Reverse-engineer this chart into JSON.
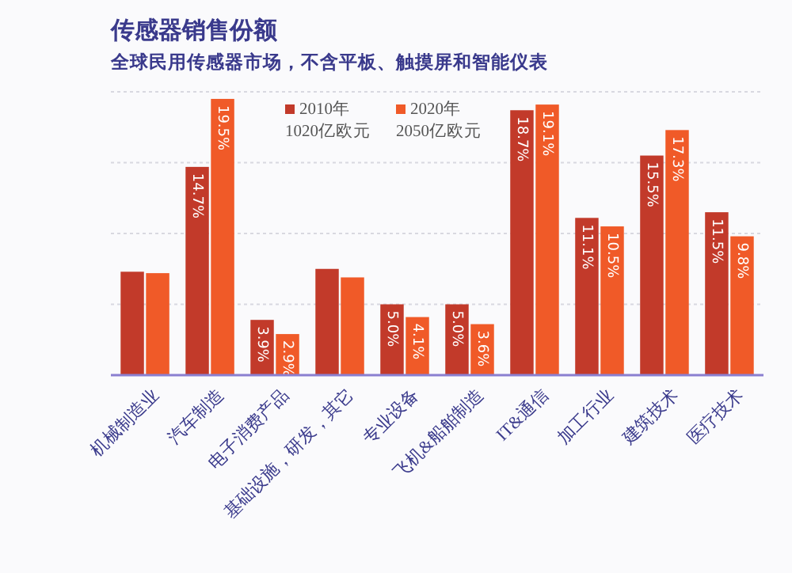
{
  "chart_data": {
    "type": "bar",
    "title": "传感器销售份额",
    "subtitle": "全球民用传感器市场，不含平板、触摸屏和智能仪表",
    "categories": [
      "机械制造业",
      "汽车制造",
      "电子消费产品",
      "基础设施，研发，其它",
      "专业设备",
      "飞机&船舶制造",
      "IT&通信",
      "加工行业",
      "建筑技术",
      "医疗技术"
    ],
    "series": [
      {
        "name": "2010年\n1020亿欧元",
        "color": "#c23a2a",
        "values": [
          7.3,
          14.7,
          3.9,
          7.5,
          5.0,
          5.0,
          18.7,
          11.1,
          15.5,
          11.5
        ],
        "value_labels": [
          null,
          "14.7%",
          "3.9%",
          null,
          "5.0%",
          "5.0%",
          "18.7%",
          "11.1%",
          "15.5%",
          "11.5%"
        ]
      },
      {
        "name": "2020年\n2050亿欧元",
        "color": "#f05a28",
        "values": [
          7.2,
          19.5,
          2.9,
          6.9,
          4.1,
          3.6,
          19.1,
          10.5,
          17.3,
          9.8
        ],
        "value_labels": [
          null,
          "19.5%",
          "2.9%",
          null,
          "4.1%",
          "3.6%",
          "19.1%",
          "10.5%",
          "17.3%",
          "9.8%"
        ]
      }
    ],
    "ylim": [
      0,
      20
    ],
    "yticks": [
      {
        "value": 5,
        "label": null
      },
      {
        "value": 10,
        "label": null
      },
      {
        "value": 15,
        "label": null
      },
      {
        "value": 20,
        "label": null
      }
    ],
    "grid": "y",
    "tick_labels": "x",
    "legend": "top"
  }
}
